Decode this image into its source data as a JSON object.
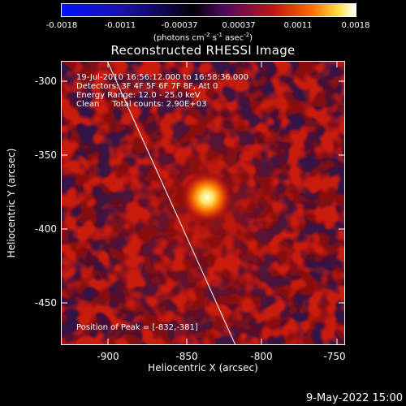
{
  "colorbar": {
    "ticks": [
      "-0.0018",
      "-0.0011",
      "-0.00037",
      "0.00037",
      "0.0011",
      "0.0018"
    ],
    "units_main": "(photons cm",
    "units_sup1": "-2",
    "units_s": " s",
    "units_sup2": "-1",
    "units_asec": " asec",
    "units_sup3": "-2",
    "units_close": ")"
  },
  "title": "Reconstructed RHESSI Image",
  "info": {
    "time": "19-Jul-2010 16:56:12.000 to 16:58:36.000",
    "detectors": "Detectors: 3F 4F 5F 6F 7F 8F, Att 0",
    "energy": "Energy Range: 12.0 - 25.0 keV",
    "method": "Clean     Total counts: 2.90E+03"
  },
  "peak_label": "Position of Peak = [-832,-381]",
  "axes": {
    "xlabel": "Heliocentric X (arcsec)",
    "ylabel": "Heliocentric Y (arcsec)",
    "xticks": [
      "-900",
      "-850",
      "-800",
      "-750"
    ],
    "yticks": [
      "-300",
      "-350",
      "-400",
      "-450"
    ],
    "xlim": [
      -932,
      -738
    ],
    "ylim": [
      -478,
      -287
    ]
  },
  "image_data": {
    "peak_x": -832,
    "peak_y": -381,
    "colormap": [
      "#0000ff",
      "#2010a0",
      "#000000",
      "#5a1070",
      "#b01010",
      "#ff5a00",
      "#ffd040",
      "#ffffff"
    ]
  },
  "timestamp": "9-May-2022 15:00"
}
